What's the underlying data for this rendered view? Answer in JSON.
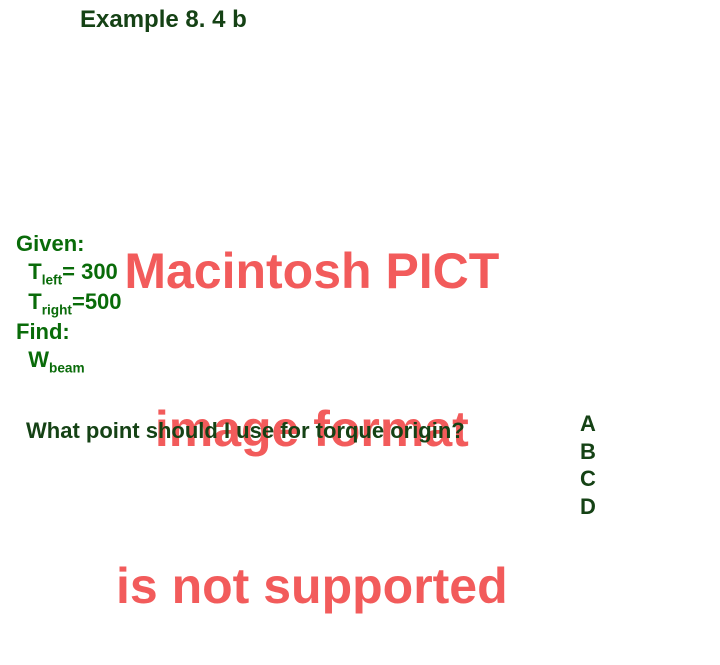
{
  "colors": {
    "title": "#154215",
    "pict": "#f25b5b",
    "given": "#096b09",
    "question": "#154215",
    "options": "#154215"
  },
  "title": "Example 8. 4 b",
  "pict": {
    "line1": "Macintosh PICT",
    "line2": "image format",
    "line3": "is not supported"
  },
  "given": {
    "label": "Given:",
    "t_left_prefix": "T",
    "t_left_sub": "left",
    "t_left_rest": "= 300",
    "t_right_prefix": "T",
    "t_right_sub": "right",
    "t_right_rest": "=500",
    "find_label": "Find:",
    "w_prefix": "W",
    "w_sub": "beam"
  },
  "question": "What point should I use for torque origin?",
  "options": {
    "a": "A",
    "b": "B",
    "c": "C",
    "d": "D"
  }
}
